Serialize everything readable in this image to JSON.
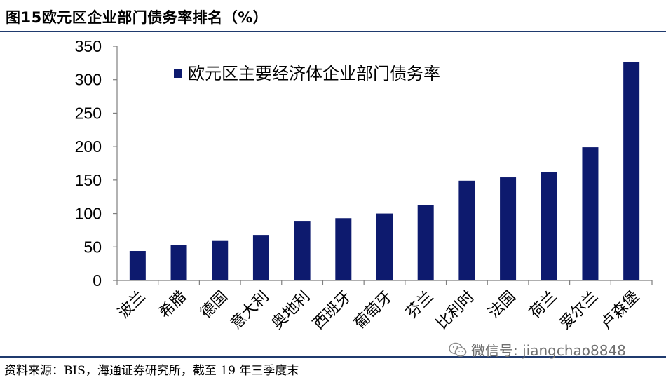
{
  "title": "图15欧元区企业部门债务率排名（%）",
  "source": "资料来源：BIS，海通证券研究所，截至 19 年三季度末",
  "watermark": {
    "icon": "wechat-icon",
    "text": "微信号: jiangchao8848"
  },
  "colors": {
    "bar": "#0d1a6e",
    "rule": "#1f3a6e",
    "axis": "#7f7f7f"
  },
  "chart_data": {
    "type": "bar",
    "title": "",
    "xlabel": "",
    "ylabel": "",
    "ylim": [
      0,
      350
    ],
    "yticks": [
      0,
      50,
      100,
      150,
      200,
      250,
      300,
      350
    ],
    "grid": false,
    "legend": "top-left",
    "categories": [
      "波兰",
      "希腊",
      "德国",
      "意大利",
      "奥地利",
      "西班牙",
      "葡萄牙",
      "芬兰",
      "比利时",
      "法国",
      "荷兰",
      "爱尔兰",
      "卢森堡"
    ],
    "series": [
      {
        "name": "欧元区主要经济体企业部门债务率",
        "values": [
          44,
          53,
          59,
          68,
          89,
          93,
          100,
          113,
          149,
          154,
          162,
          199,
          326
        ]
      }
    ]
  }
}
